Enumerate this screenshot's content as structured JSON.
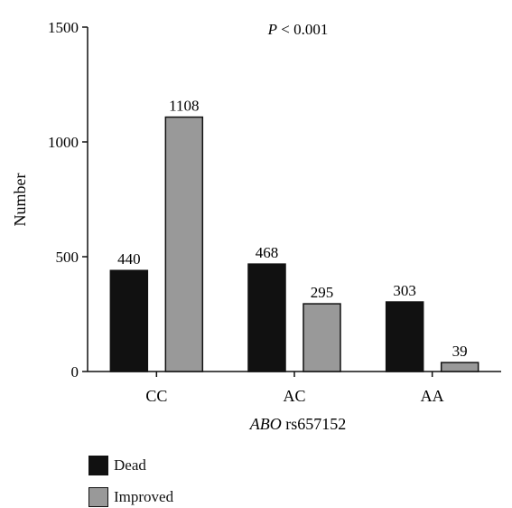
{
  "chart_data": {
    "type": "bar",
    "annotation": {
      "prefix": "P",
      "text": " < 0.001"
    },
    "xlabel": {
      "italic": "ABO",
      "rest": " rs657152"
    },
    "ylabel": "Number",
    "ylim": [
      0,
      1500
    ],
    "yticks": [
      0,
      500,
      1000,
      1500
    ],
    "categories": [
      "CC",
      "AC",
      "AA"
    ],
    "series": [
      {
        "name": "Dead",
        "color": "#111111",
        "values": [
          440,
          468,
          303
        ]
      },
      {
        "name": "Improved",
        "color": "#999999",
        "values": [
          1108,
          295,
          39
        ]
      }
    ],
    "legend_position": "bottom-left"
  }
}
